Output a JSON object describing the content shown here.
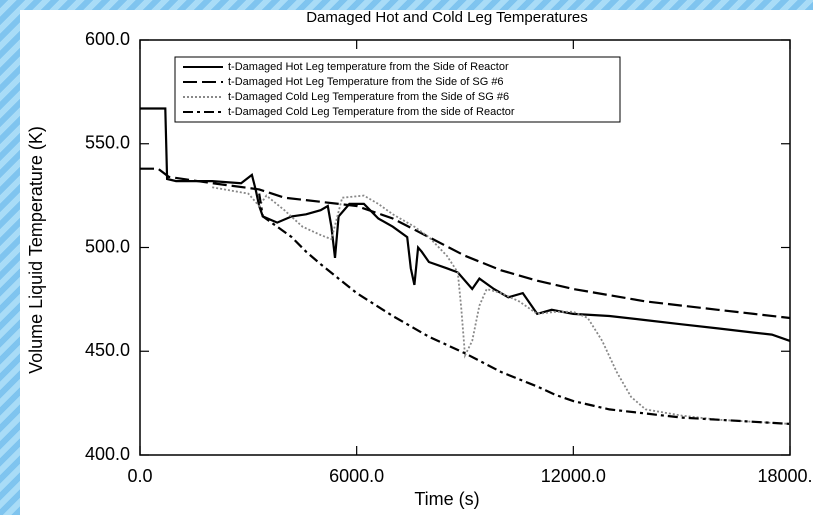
{
  "chart_data": {
    "type": "line",
    "title": "Damaged Hot and Cold Leg Temperatures",
    "xlabel": "Time (s)",
    "ylabel": "Volume Liquid Temperature (K)",
    "xlim": [
      0,
      18000
    ],
    "ylim": [
      400,
      600
    ],
    "xticks": [
      {
        "value": 0,
        "label": "0.0"
      },
      {
        "value": 6000,
        "label": "6000.0"
      },
      {
        "value": 12000,
        "label": "12000.0"
      },
      {
        "value": 18000,
        "label": "18000.0"
      }
    ],
    "yticks": [
      {
        "value": 400,
        "label": "400.0"
      },
      {
        "value": 450,
        "label": "450.0"
      },
      {
        "value": 500,
        "label": "500.0"
      },
      {
        "value": 550,
        "label": "550.0"
      },
      {
        "value": 600,
        "label": "600.0"
      }
    ],
    "legend": "upper left",
    "series": [
      {
        "name": "t-Damaged Hot Leg temperature from the Side of Reactor",
        "color": "#000000",
        "style": "solid",
        "x": [
          0,
          700,
          750,
          1000,
          2000,
          2800,
          3100,
          3200,
          3300,
          3400,
          3800,
          4200,
          4600,
          5000,
          5200,
          5300,
          5400,
          5500,
          5800,
          6200,
          6600,
          7000,
          7400,
          7500,
          7600,
          7700,
          7800,
          8000,
          8500,
          8800,
          9200,
          9400,
          9800,
          10200,
          10600,
          11000,
          11400,
          12000,
          13000,
          14000,
          15000,
          16000,
          17000,
          17500,
          18000
        ],
        "values": [
          567,
          567,
          533,
          532,
          532,
          531,
          535,
          528,
          520,
          515,
          512,
          515,
          516,
          518,
          520,
          510,
          495,
          515,
          521,
          521,
          514,
          510,
          505,
          490,
          482,
          500,
          498,
          493,
          490,
          488,
          480,
          485,
          480,
          476,
          478,
          468,
          470,
          468,
          467,
          465,
          463,
          461,
          459,
          458,
          455
        ]
      },
      {
        "name": "t-Damaged Hot Leg Temperature from the Side of SG #6",
        "color": "#000000",
        "style": "dashed",
        "x": [
          0,
          500,
          800,
          2000,
          3300,
          4000,
          5000,
          6000,
          7000,
          8000,
          9000,
          10000,
          11000,
          12000,
          13000,
          14000,
          15000,
          16000,
          17000,
          18000
        ],
        "values": [
          538,
          538,
          534,
          531,
          528,
          524,
          522,
          520,
          514,
          505,
          496,
          489,
          484,
          480,
          477,
          474,
          472,
          470,
          468,
          466
        ]
      },
      {
        "name": "t-Damaged Cold Leg Temperature from the Side of SG #6",
        "color": "#888888",
        "style": "dotted",
        "x": [
          2000,
          3000,
          3300,
          3500,
          4000,
          4500,
          5000,
          5300,
          5600,
          6200,
          6600,
          7000,
          7600,
          8000,
          8500,
          8800,
          8900,
          9000,
          9200,
          9400,
          9600,
          10000,
          10500,
          11000,
          11500,
          12000,
          12400,
          12800,
          13200,
          13600,
          14000,
          15000,
          16000,
          17000,
          18000
        ],
        "values": [
          529,
          526,
          520,
          525,
          518,
          510,
          506,
          504,
          524,
          525,
          521,
          516,
          510,
          505,
          496,
          488,
          470,
          448,
          455,
          472,
          480,
          478,
          474,
          468,
          469,
          469,
          466,
          455,
          440,
          428,
          422,
          419,
          417,
          416,
          415
        ]
      },
      {
        "name": "t-Damaged Cold Leg Temperature from the side of Reactor",
        "color": "#000000",
        "style": "dashdot",
        "x": [
          3300,
          3400,
          3800,
          4200,
          4600,
          5000,
          5500,
          6000,
          7000,
          8000,
          9000,
          10000,
          11000,
          11500,
          12000,
          13000,
          14000,
          15000,
          16000,
          17000,
          18000
        ],
        "values": [
          526,
          515,
          510,
          505,
          498,
          492,
          485,
          478,
          467,
          457,
          449,
          440,
          433,
          429,
          426,
          422,
          420,
          418,
          417,
          416,
          415
        ]
      }
    ]
  }
}
